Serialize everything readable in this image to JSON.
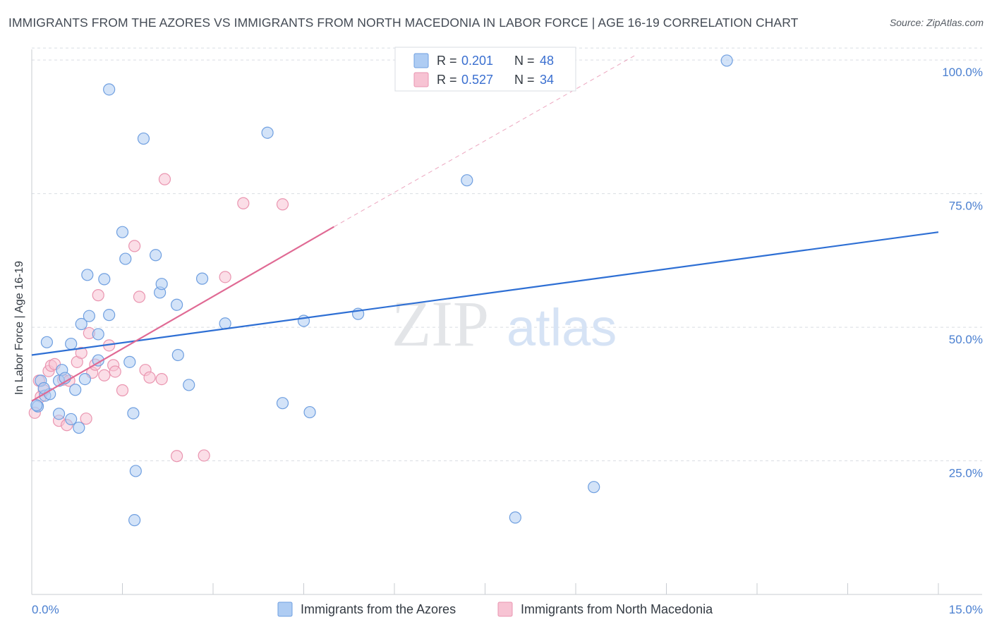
{
  "title": "IMMIGRANTS FROM THE AZORES VS IMMIGRANTS FROM NORTH MACEDONIA IN LABOR FORCE | AGE 16-19 CORRELATION CHART",
  "source": "Source: ZipAtlas.com",
  "watermark": {
    "zip": "ZIP",
    "atlas": "atlas"
  },
  "colors": {
    "azores_fill": "#aeccf3",
    "azores_stroke": "#6f9fe0",
    "azores_line": "#2e6fd4",
    "macedonia_fill": "#f7c3d3",
    "macedonia_stroke": "#ea95b0",
    "macedonia_line": "#e06a94",
    "tick": "#4a7fd0",
    "grid": "#d9dde3"
  },
  "legend": {
    "rows": [
      {
        "r_label": "R =",
        "r_value": "0.201",
        "n_label": "N =",
        "n_value": "48"
      },
      {
        "r_label": "R =",
        "r_value": "0.527",
        "n_label": "N =",
        "n_value": "34"
      }
    ]
  },
  "chart_data": {
    "type": "scatter",
    "title": "IMMIGRANTS FROM THE AZORES VS IMMIGRANTS FROM NORTH MACEDONIA IN LABOR FORCE | AGE 16-19 CORRELATION CHART",
    "xlabel": "",
    "ylabel": "In Labor Force | Age 16-19",
    "xlim": [
      0,
      15
    ],
    "ylim": [
      0,
      102
    ],
    "x_tick_labels": [
      {
        "value": 0,
        "label": "0.0%"
      },
      {
        "value": 15,
        "label": "15.0%"
      }
    ],
    "y_tick_labels": [
      {
        "value": 25,
        "label": "25.0%"
      },
      {
        "value": 50,
        "label": "50.0%"
      },
      {
        "value": 75,
        "label": "75.0%"
      },
      {
        "value": 100,
        "label": "100.0%"
      }
    ],
    "series": [
      {
        "name": "Immigrants from the Azores",
        "r": 0.201,
        "n": 48,
        "trend": {
          "x0": 0,
          "y0": 44.8,
          "x1": 15,
          "y1": 67.8,
          "dashed_extension_to": null
        },
        "points": [
          {
            "x": 0.1,
            "y": 35.2
          },
          {
            "x": 0.15,
            "y": 40.0
          },
          {
            "x": 0.22,
            "y": 37.2
          },
          {
            "x": 0.25,
            "y": 47.2
          },
          {
            "x": 0.3,
            "y": 37.5
          },
          {
            "x": 0.45,
            "y": 33.8
          },
          {
            "x": 0.5,
            "y": 42.0
          },
          {
            "x": 0.45,
            "y": 40.0
          },
          {
            "x": 0.55,
            "y": 40.5
          },
          {
            "x": 0.65,
            "y": 46.9
          },
          {
            "x": 0.65,
            "y": 32.8
          },
          {
            "x": 0.72,
            "y": 38.3
          },
          {
            "x": 0.78,
            "y": 31.2
          },
          {
            "x": 0.82,
            "y": 50.6
          },
          {
            "x": 0.88,
            "y": 40.3
          },
          {
            "x": 0.92,
            "y": 59.8
          },
          {
            "x": 0.95,
            "y": 52.1
          },
          {
            "x": 1.1,
            "y": 48.7
          },
          {
            "x": 1.1,
            "y": 43.8
          },
          {
            "x": 1.2,
            "y": 59.0
          },
          {
            "x": 1.28,
            "y": 52.3
          },
          {
            "x": 1.5,
            "y": 67.8
          },
          {
            "x": 1.55,
            "y": 62.8
          },
          {
            "x": 1.62,
            "y": 43.5
          },
          {
            "x": 1.68,
            "y": 33.9
          },
          {
            "x": 1.72,
            "y": 23.1
          },
          {
            "x": 1.7,
            "y": 13.9
          },
          {
            "x": 1.85,
            "y": 85.3
          },
          {
            "x": 2.05,
            "y": 63.5
          },
          {
            "x": 2.12,
            "y": 56.5
          },
          {
            "x": 2.15,
            "y": 58.1
          },
          {
            "x": 2.4,
            "y": 54.2
          },
          {
            "x": 2.42,
            "y": 44.8
          },
          {
            "x": 2.6,
            "y": 39.2
          },
          {
            "x": 2.82,
            "y": 59.1
          },
          {
            "x": 3.2,
            "y": 50.7
          },
          {
            "x": 3.9,
            "y": 86.4
          },
          {
            "x": 4.15,
            "y": 35.8
          },
          {
            "x": 4.5,
            "y": 51.2
          },
          {
            "x": 4.6,
            "y": 34.1
          },
          {
            "x": 5.4,
            "y": 52.5
          },
          {
            "x": 7.2,
            "y": 77.5
          },
          {
            "x": 8.0,
            "y": 14.4
          },
          {
            "x": 9.3,
            "y": 20.1
          },
          {
            "x": 11.5,
            "y": 99.9
          },
          {
            "x": 1.28,
            "y": 94.5
          },
          {
            "x": 0.08,
            "y": 35.4
          },
          {
            "x": 0.2,
            "y": 38.6
          }
        ]
      },
      {
        "name": "Immigrants from North Macedonia",
        "r": 0.527,
        "n": 34,
        "trend": {
          "x0": 0,
          "y0": 36.2,
          "x1": 5.0,
          "y1": 68.8,
          "dashed_extension_to": {
            "x": 10,
            "y": 101
          }
        },
        "points": [
          {
            "x": 0.05,
            "y": 34.0
          },
          {
            "x": 0.12,
            "y": 40.0
          },
          {
            "x": 0.2,
            "y": 38.2
          },
          {
            "x": 0.28,
            "y": 41.8
          },
          {
            "x": 0.32,
            "y": 42.8
          },
          {
            "x": 0.38,
            "y": 43.1
          },
          {
            "x": 0.45,
            "y": 32.5
          },
          {
            "x": 0.52,
            "y": 40.2
          },
          {
            "x": 0.58,
            "y": 31.7
          },
          {
            "x": 0.62,
            "y": 40.0
          },
          {
            "x": 0.75,
            "y": 43.5
          },
          {
            "x": 0.82,
            "y": 45.2
          },
          {
            "x": 0.9,
            "y": 32.9
          },
          {
            "x": 0.95,
            "y": 48.9
          },
          {
            "x": 1.0,
            "y": 41.5
          },
          {
            "x": 1.05,
            "y": 43.0
          },
          {
            "x": 1.1,
            "y": 56.0
          },
          {
            "x": 1.2,
            "y": 41.0
          },
          {
            "x": 1.28,
            "y": 46.6
          },
          {
            "x": 1.35,
            "y": 42.9
          },
          {
            "x": 1.38,
            "y": 41.7
          },
          {
            "x": 1.5,
            "y": 38.2
          },
          {
            "x": 1.7,
            "y": 65.2
          },
          {
            "x": 1.78,
            "y": 55.7
          },
          {
            "x": 1.88,
            "y": 42.0
          },
          {
            "x": 1.95,
            "y": 40.6
          },
          {
            "x": 2.15,
            "y": 40.3
          },
          {
            "x": 2.2,
            "y": 77.7
          },
          {
            "x": 2.4,
            "y": 25.9
          },
          {
            "x": 2.85,
            "y": 26.0
          },
          {
            "x": 3.2,
            "y": 59.4
          },
          {
            "x": 3.5,
            "y": 73.2
          },
          {
            "x": 4.15,
            "y": 73.0
          },
          {
            "x": 0.15,
            "y": 37.0
          }
        ]
      }
    ]
  },
  "bottom_legend": {
    "items": [
      "Immigrants from the Azores",
      "Immigrants from North Macedonia"
    ]
  }
}
